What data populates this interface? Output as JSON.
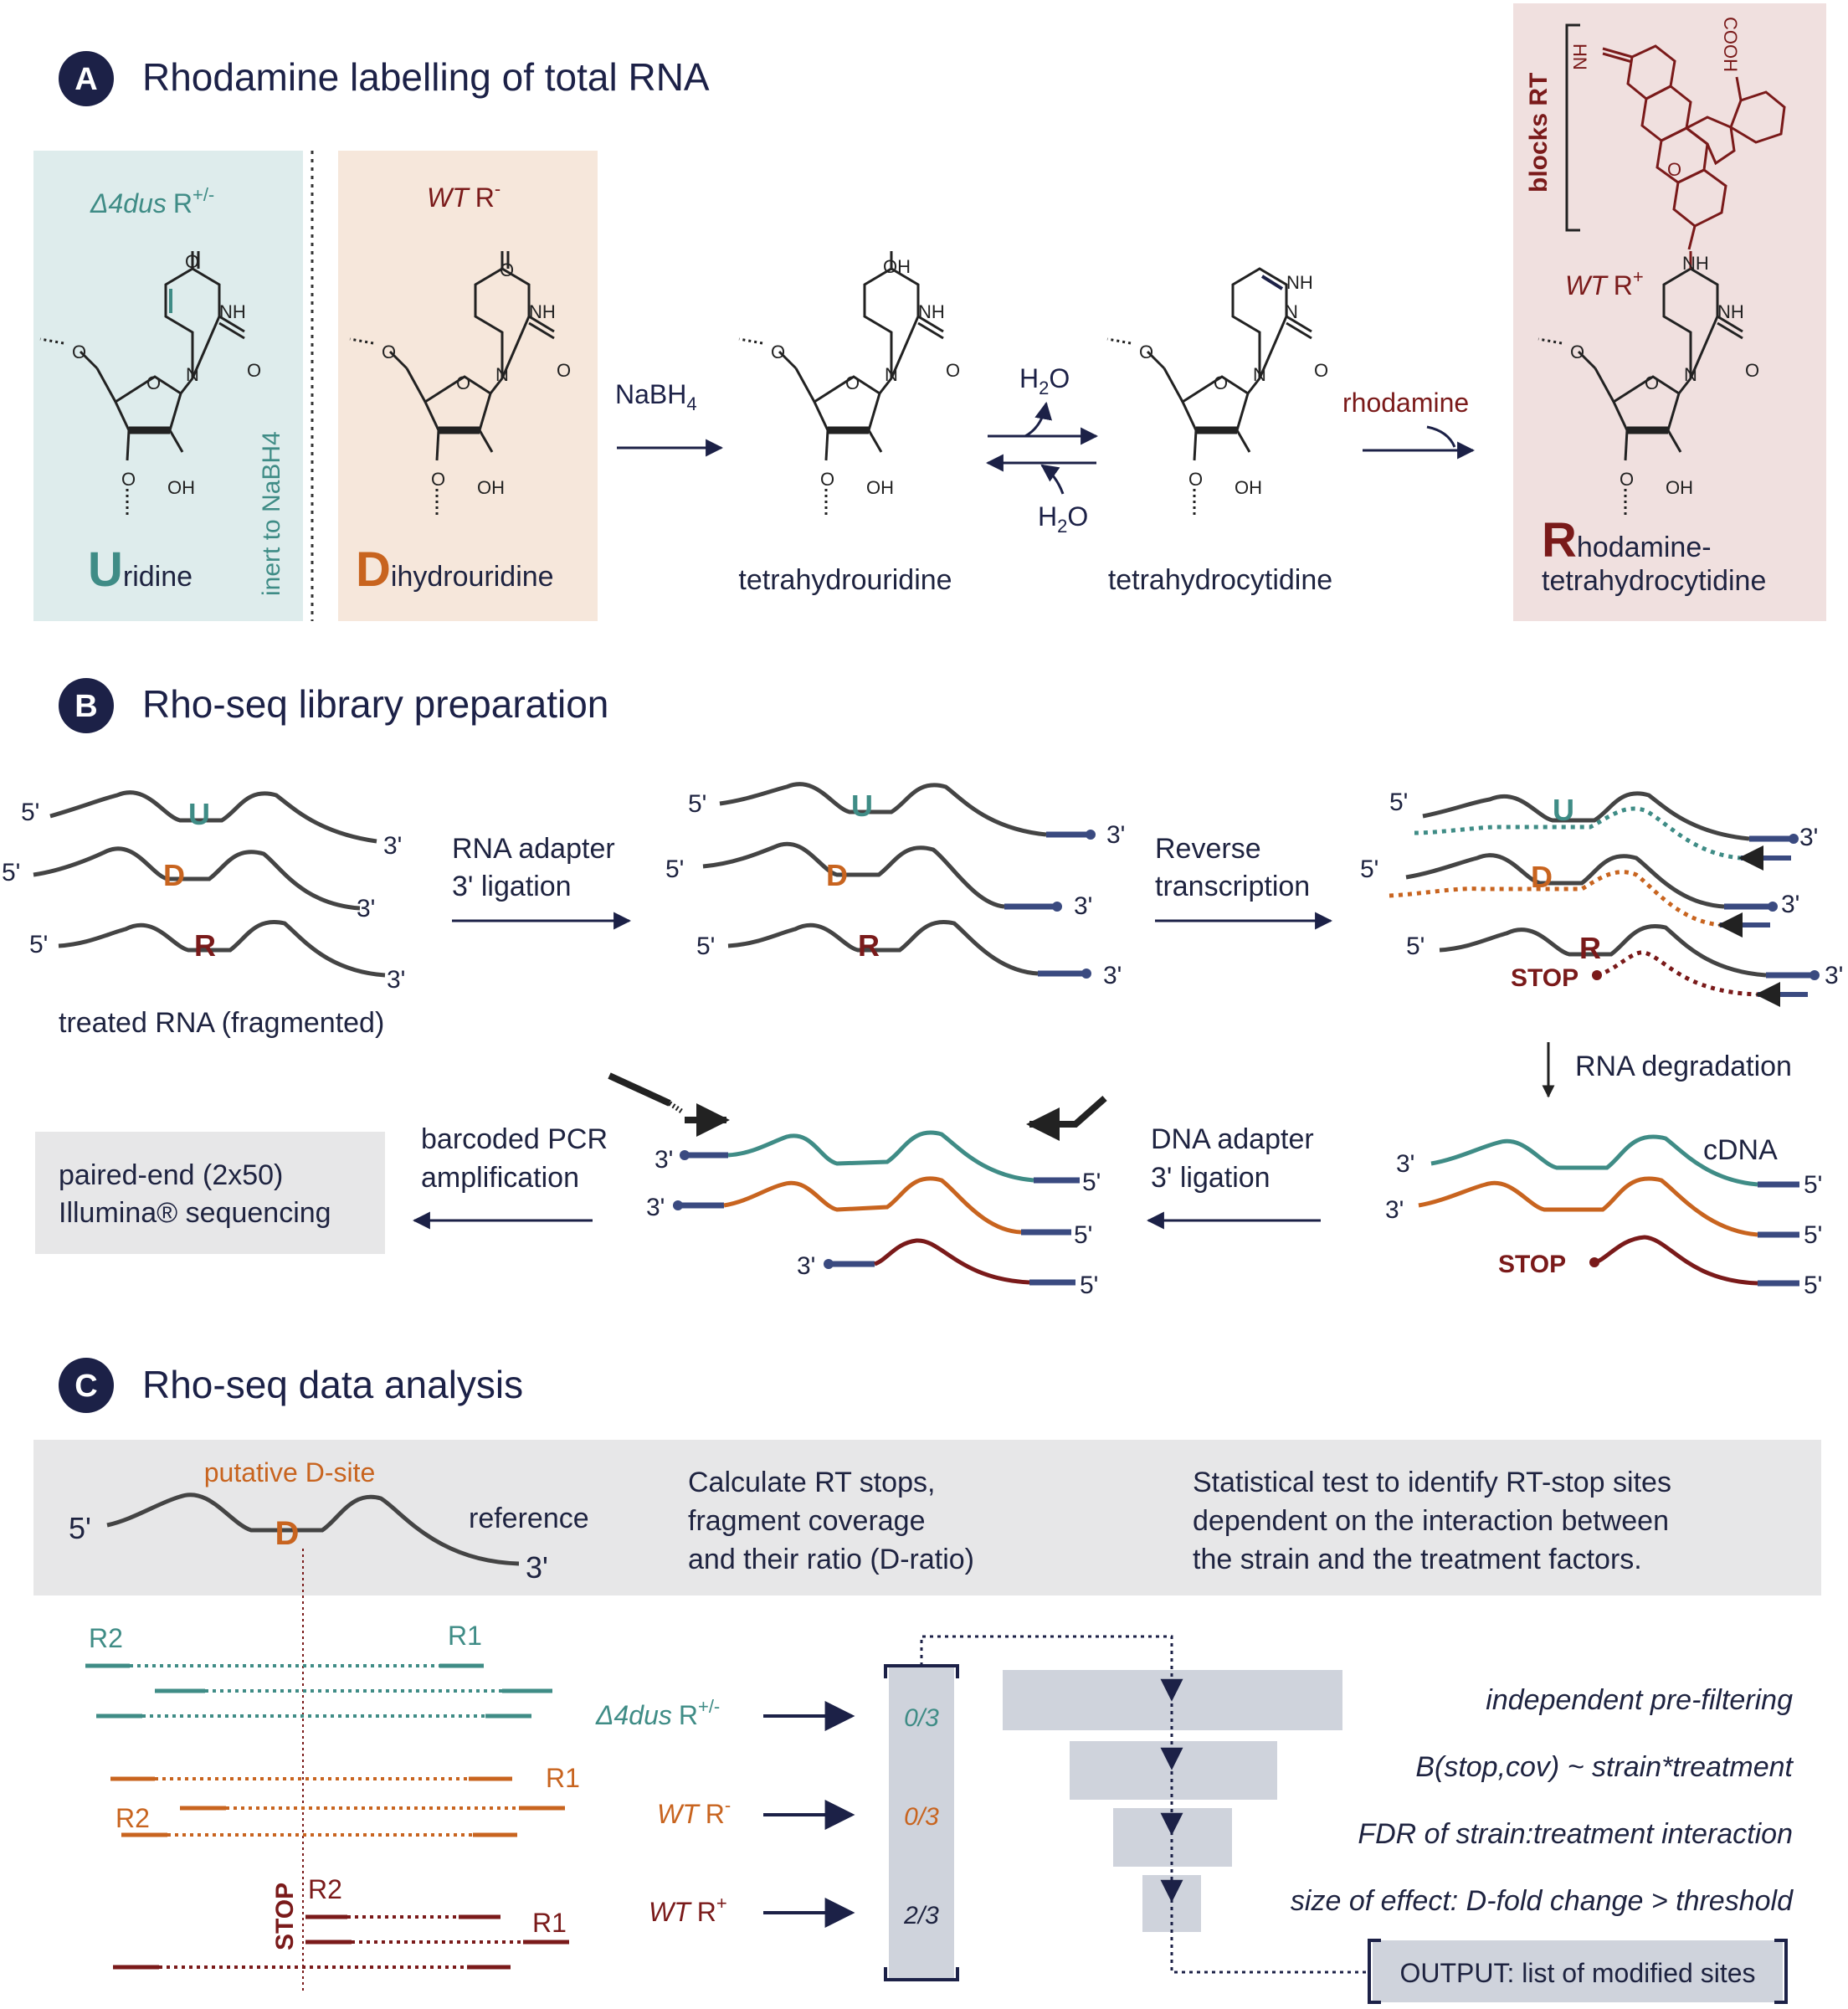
{
  "colors": {
    "navy": "#1c2147",
    "teal": "#3f8c86",
    "orange": "#c8641f",
    "maroon": "#7a1a1a",
    "grey_line": "#444444",
    "adapter_blue": "#3a4a80",
    "panel_teal": "#deecec",
    "panel_orange": "#f6e7db",
    "panel_maroon": "#f0e0df",
    "panel_grey": "#e7e7e8",
    "bar_grey": "#cfd3dc"
  },
  "panelA": {
    "badge": "A",
    "title": "Rhodamine labelling of total RNA",
    "strain_dus": "Δ4dus",
    "strain_dus_sup": "+/-",
    "strain_wt": "WT",
    "strain_wt_minus_sup": "-",
    "strain_wt_plus_sup": "+",
    "r_letter": "R",
    "inert_label": "inert to NaBH4",
    "uridine_big": "U",
    "uridine_rest": "ridine",
    "dihydro_big": "D",
    "dihydro_rest": "ihydrouridine",
    "reagent_nabh4": "NaBH4",
    "water_top": "H2O",
    "water_bottom": "H2O",
    "tetrahydrouridine": "tetrahydrouridine",
    "tetrahydrocytidine": "tetrahydrocytidine",
    "reagent_rhodamine": "rhodamine",
    "rhod_big": "R",
    "rhod_rest1": "hodamine-",
    "rhod_rest2": "tetrahydrocytidine",
    "blocks_rt": "blocks RT",
    "atom_O": "O",
    "atom_NH": "NH",
    "atom_N": "N",
    "atom_OH": "OH",
    "atom_HN": "HN",
    "atom_COOH": "COOH"
  },
  "panelB": {
    "badge": "B",
    "title": "Rho-seq library preparation",
    "five": "5'",
    "three": "3'",
    "nuc_U": "U",
    "nuc_D": "D",
    "nuc_R": "R",
    "treated_rna": "treated RNA (fragmented)",
    "step1_line1": "RNA adapter",
    "step1_line2": "3' ligation",
    "step2_line1": "Reverse",
    "step2_line2": "transcription",
    "stop": "STOP",
    "rna_degradation": "RNA degradation",
    "cdna": "cDNA",
    "step4_line1": "DNA adapter",
    "step4_line2": "3' ligation",
    "step5_line1": "barcoded PCR",
    "step5_line2": "amplification",
    "seq_line1": "paired-end (2x50)",
    "seq_line2": "Illumina® sequencing"
  },
  "panelC": {
    "badge": "C",
    "title": "Rho-seq data analysis",
    "putative": "putative D-site",
    "reference": "reference",
    "five": "5'",
    "three": "3'",
    "nuc_D": "D",
    "calc_lines": [
      "Calculate RT stops,",
      "fragment coverage",
      "and their ratio (D-ratio)"
    ],
    "stat_lines": [
      "Statistical test to identify RT-stop sites",
      "dependent on the interaction between",
      "the strain and the treatment factors."
    ],
    "r1": "R1",
    "r2": "R2",
    "stop": "STOP",
    "conditions": [
      {
        "strain": "Δ4dus",
        "sup": "+/-",
        "count": "0/3"
      },
      {
        "strain": "WT",
        "sup": "-",
        "count": "0/3"
      },
      {
        "strain": "WT",
        "sup": "+",
        "count": "2/3"
      }
    ],
    "filters": [
      "independent pre-filtering",
      "B(stop,cov) ~ strain*treatment",
      "FDR of strain:treatment interaction",
      "size of effect: D-fold change > threshold"
    ],
    "output": "OUTPUT: list of modified sites"
  }
}
